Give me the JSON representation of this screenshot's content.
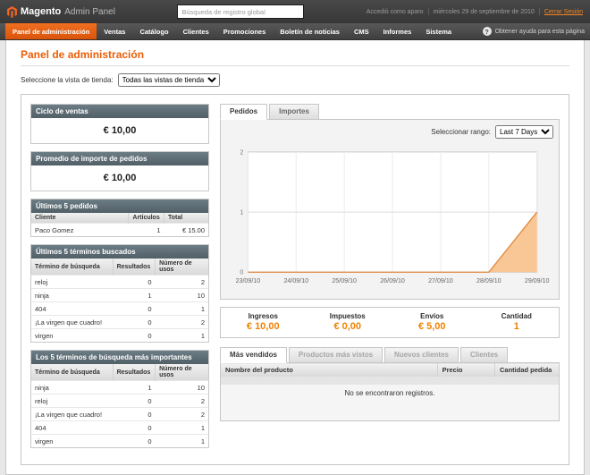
{
  "topbar": {
    "brand": "Magento",
    "brand_suffix": "Admin Panel",
    "search_placeholder": "Búsqueda de registro global",
    "logged_in": "Accedió como aparo",
    "date": "miércoles 29 de septiembre de 2010",
    "logout": "Cerrar Sesión"
  },
  "nav": {
    "items": [
      {
        "label": "Panel de administración",
        "active": true
      },
      {
        "label": "Ventas",
        "active": false
      },
      {
        "label": "Catálogo",
        "active": false
      },
      {
        "label": "Clientes",
        "active": false
      },
      {
        "label": "Promociones",
        "active": false
      },
      {
        "label": "Boletín de noticias",
        "active": false
      },
      {
        "label": "CMS",
        "active": false
      },
      {
        "label": "Informes",
        "active": false
      },
      {
        "label": "Sistema",
        "active": false
      }
    ],
    "help_label": "Obtener ayuda para esta página"
  },
  "page": {
    "title": "Panel de administración"
  },
  "store_switcher": {
    "label": "Seleccione la vista de tienda:",
    "value": "Todas las vistas de tienda"
  },
  "left": {
    "lifetime_sales": {
      "title": "Ciclo de ventas",
      "value": "€ 10,00"
    },
    "average_orders": {
      "title": "Promedio de importe de pedidos",
      "value": "€ 10,00"
    },
    "last_orders": {
      "title": "Últimos 5 pedidos",
      "headers": [
        "Cliente",
        "Artículos",
        "Total"
      ],
      "rows": [
        [
          "Paco Gomez",
          "1",
          "€ 15.00"
        ]
      ]
    },
    "last_search": {
      "title": "Últimos 5 términos buscados",
      "headers": [
        "Término de búsqueda",
        "Resultados",
        "Número de usos"
      ],
      "rows": [
        [
          "reloj",
          "0",
          "2"
        ],
        [
          "ninja",
          "1",
          "10"
        ],
        [
          "404",
          "0",
          "1"
        ],
        [
          "¡La virgen que cuadro!",
          "0",
          "2"
        ],
        [
          "virgen",
          "0",
          "1"
        ]
      ]
    },
    "top_search": {
      "title": "Los 5 términos de búsqueda más importantes",
      "headers": [
        "Término de búsqueda",
        "Resultados",
        "Número de usos"
      ],
      "rows": [
        [
          "ninja",
          "1",
          "10"
        ],
        [
          "reloj",
          "0",
          "2"
        ],
        [
          "¡La virgen que cuadro!",
          "0",
          "2"
        ],
        [
          "404",
          "0",
          "1"
        ],
        [
          "virgen",
          "0",
          "1"
        ]
      ]
    }
  },
  "main": {
    "chart_tabs": [
      {
        "label": "Pedidos",
        "active": true
      },
      {
        "label": "Importes",
        "active": false
      }
    ],
    "range_label": "Seleccionar rango:",
    "range_value": "Last 7 Days",
    "totals": [
      {
        "label": "Ingresos",
        "value": "€ 10,00"
      },
      {
        "label": "Impuestos",
        "value": "€ 0,00"
      },
      {
        "label": "Envíos",
        "value": "€ 5,00"
      },
      {
        "label": "Cantidad",
        "value": "1"
      }
    ],
    "grid_tabs": [
      {
        "label": "Más vendidos",
        "active": true
      },
      {
        "label": "Productos más vistos",
        "active": false
      },
      {
        "label": "Nuevos clientes",
        "active": false
      },
      {
        "label": "Clientes",
        "active": false
      }
    ],
    "grid": {
      "headers": [
        "Nombre del producto",
        "Precio",
        "Cantidad pedida"
      ],
      "empty": "No se encontraron registros."
    }
  },
  "chart_data": {
    "type": "area",
    "x": [
      "23/09/10",
      "24/09/10",
      "25/09/10",
      "26/09/10",
      "27/09/10",
      "28/09/10",
      "29/09/10"
    ],
    "values": [
      0,
      0,
      0,
      0,
      0,
      0,
      1
    ],
    "ylim": [
      0,
      2
    ],
    "yticks": [
      0,
      1,
      2
    ],
    "grid": true,
    "legend": "none",
    "title": ""
  },
  "icons": {
    "help_glyph": "?"
  },
  "colors": {
    "accent_title": "#eb5e07",
    "nav_active": "#e85c10",
    "value_orange": "#f18200",
    "panel_header": "#5f7077",
    "chart_fill": "#f8c795",
    "chart_line": "#e0873c"
  }
}
